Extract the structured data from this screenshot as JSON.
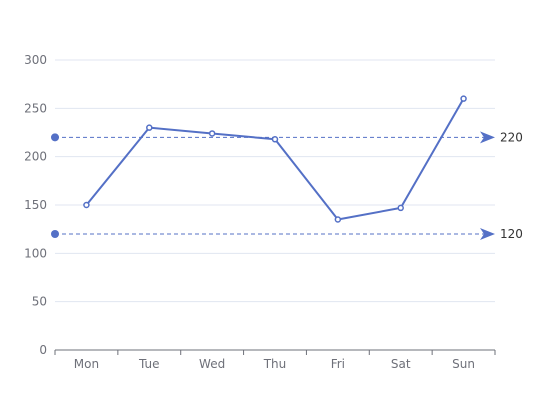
{
  "chart_data": {
    "type": "line",
    "categories": [
      "Mon",
      "Tue",
      "Wed",
      "Thu",
      "Fri",
      "Sat",
      "Sun"
    ],
    "series": [
      {
        "values": [
          150,
          230,
          224,
          218,
          135,
          147,
          260
        ]
      }
    ],
    "ylim": [
      0,
      300
    ],
    "yticks": [
      0,
      50,
      100,
      150,
      200,
      250,
      300
    ],
    "grid": true,
    "mark_lines": [
      {
        "value": 220,
        "label": "220"
      },
      {
        "value": 120,
        "label": "120"
      }
    ],
    "colors": {
      "series": "#5470c6",
      "grid": "#e0e6f1",
      "axis": "#6e7079",
      "point_fill": "#ffffff"
    }
  }
}
